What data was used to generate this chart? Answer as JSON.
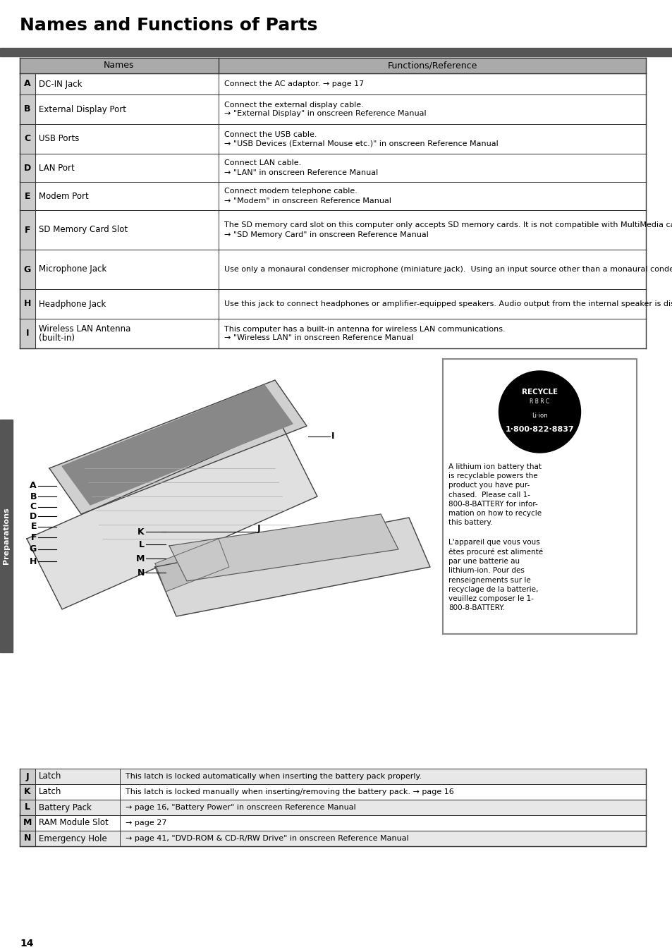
{
  "title": "Names and Functions of Parts",
  "page_number": "14",
  "sidebar_text": "Preparations",
  "bg_color": "#ffffff",
  "header_bar_color": "#555555",
  "table_header_bg": "#aaaaaa",
  "table_border": "#333333",
  "top_table": {
    "col1_header": "Names",
    "col2_header": "Functions/Reference",
    "rows": [
      {
        "letter": "A",
        "name": "DC-IN Jack",
        "icon": "DC IN 16V",
        "func": "Connect the AC adaptor. → page 17"
      },
      {
        "letter": "B",
        "name": "External Display Port",
        "icon": "□",
        "func": "Connect the external display cable.\n→ \"External Display\" in onscreen Reference Manual"
      },
      {
        "letter": "C",
        "name": "USB Ports",
        "icon": "⇋",
        "func": "Connect the USB cable.\n→ \"USB Devices (External Mouse etc.)\" in onscreen Reference Manual"
      },
      {
        "letter": "D",
        "name": "LAN Port",
        "icon": "≣",
        "func": "Connect LAN cable.\n→ \"LAN\" in onscreen Reference Manual"
      },
      {
        "letter": "E",
        "name": "Modem Port",
        "icon": "☏",
        "func": "Connect modem telephone cable.\n→ \"Modem\" in onscreen Reference Manual"
      },
      {
        "letter": "F",
        "name": "SD Memory Card Slot",
        "icon": "SD",
        "func": "The SD memory card slot on this computer only accepts SD memory cards. It is not compatible with MultiMedia cards.\n→ \"SD Memory Card\" in onscreen Reference Manual"
      },
      {
        "letter": "G",
        "name": "Microphone Jack",
        "icon": "/",
        "func": "Use only a monaural condenser microphone (miniature jack).  Using an input source other than a monaural condenser microphone may not allow audio to be input or may damage the equipment."
      },
      {
        "letter": "H",
        "name": "Headphone Jack",
        "icon": "n",
        "func": "Use this jack to connect headphones or amplifier-equipped speakers. Audio output from the internal speaker is disabled when headphones or external speakers are connected."
      },
      {
        "letter": "I",
        "name": "Wireless LAN Antenna\n(built-in)",
        "icon": "",
        "func": "This computer has a built-in antenna for wireless LAN communications.\n→ \"Wireless LAN\" in onscreen Reference Manual"
      }
    ]
  },
  "bottom_table": {
    "rows": [
      {
        "letter": "J",
        "name": "Latch",
        "func": "This latch is locked automatically when inserting the battery pack properly."
      },
      {
        "letter": "K",
        "name": "Latch",
        "func": "This latch is locked manually when inserting/removing the battery pack. → page 16"
      },
      {
        "letter": "L",
        "name": "Battery Pack",
        "func": "→ page 16, \"Battery Power\" in onscreen Reference Manual"
      },
      {
        "letter": "M",
        "name": "RAM Module Slot",
        "func": "→ page 27"
      },
      {
        "letter": "N",
        "name": "Emergency Hole",
        "func": "→ page 41, \"DVD-ROM & CD-R/RW Drive\" in onscreen Reference Manual"
      }
    ]
  },
  "recycle_text_en": "A lithium ion battery that\nis recyclable powers the\nproduct you have pur-\nchased.  Please call 1-\n800-8-BATTERY for infor-\nmation on how to recycle\nthis battery.",
  "recycle_text_fr": "L'appareil que vous vous\nêtes procuré est alimenté\npar une batterie au\nlithium-ion. Pour des\nrenseignements sur le\nrecyclage de la batterie,\nveuillez composer le 1-\n800-8-BATTERY."
}
